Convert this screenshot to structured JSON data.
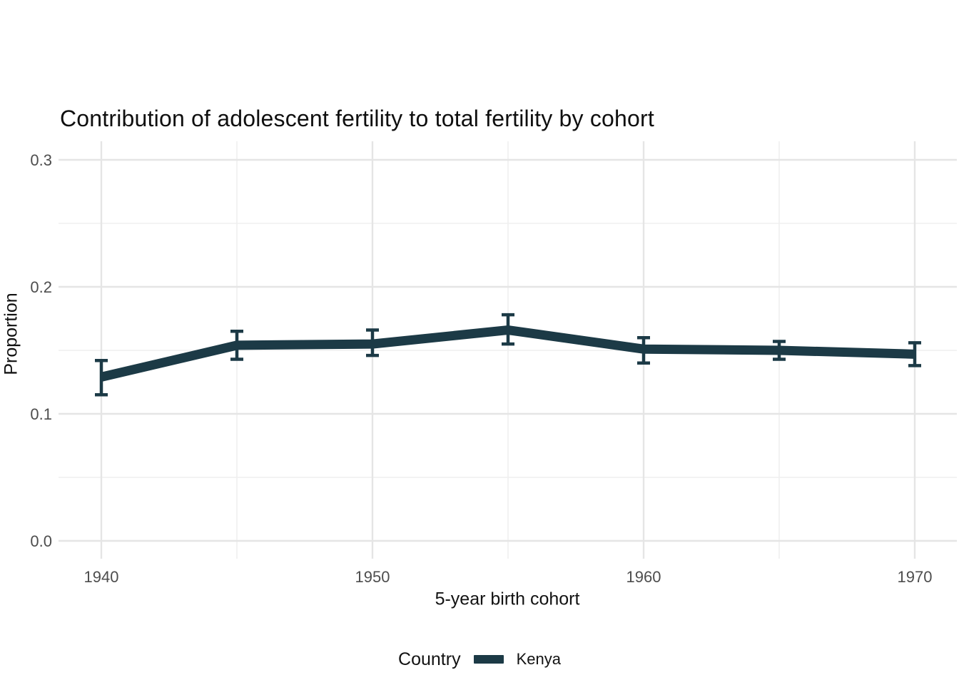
{
  "colors": {
    "background": "#ffffff",
    "series_kenya": "#1c3a46",
    "grid_major": "#e5e5e5",
    "grid_minor": "#efefef",
    "tick_label": "#4d4d4d",
    "text": "#121212"
  },
  "chart_data": {
    "type": "line",
    "title": "Contribution of adolescent fertility to total fertility by cohort",
    "xlabel": "5-year birth cohort",
    "ylabel": "Proportion",
    "x": [
      1940,
      1945,
      1950,
      1955,
      1960,
      1965,
      1970
    ],
    "series": [
      {
        "name": "Kenya",
        "color": "#1c3a46",
        "values": [
          0.129,
          0.154,
          0.155,
          0.166,
          0.151,
          0.15,
          0.147
        ],
        "ci_lower": [
          0.115,
          0.143,
          0.146,
          0.155,
          0.14,
          0.143,
          0.138
        ],
        "ci_upper": [
          0.142,
          0.165,
          0.166,
          0.178,
          0.16,
          0.157,
          0.156
        ]
      }
    ],
    "error_bars": true,
    "markers": false,
    "grid": true,
    "x_ticks": [
      1940,
      1950,
      1960,
      1970
    ],
    "x_tick_labels": [
      "1940",
      "1950",
      "1960",
      "1970"
    ],
    "x_minor_ticks": [
      1945,
      1955,
      1965
    ],
    "y_ticks": [
      0.0,
      0.1,
      0.2,
      0.3
    ],
    "y_tick_labels": [
      "0.0",
      "0.1",
      "0.2",
      "0.3"
    ],
    "y_minor_ticks": [
      0.05,
      0.15,
      0.25
    ],
    "xlim": [
      1938.5,
      1971.5
    ],
    "ylim": [
      -0.015,
      0.315
    ],
    "legend": {
      "title": "Country",
      "position": "bottom",
      "entries": [
        "Kenya"
      ]
    }
  }
}
